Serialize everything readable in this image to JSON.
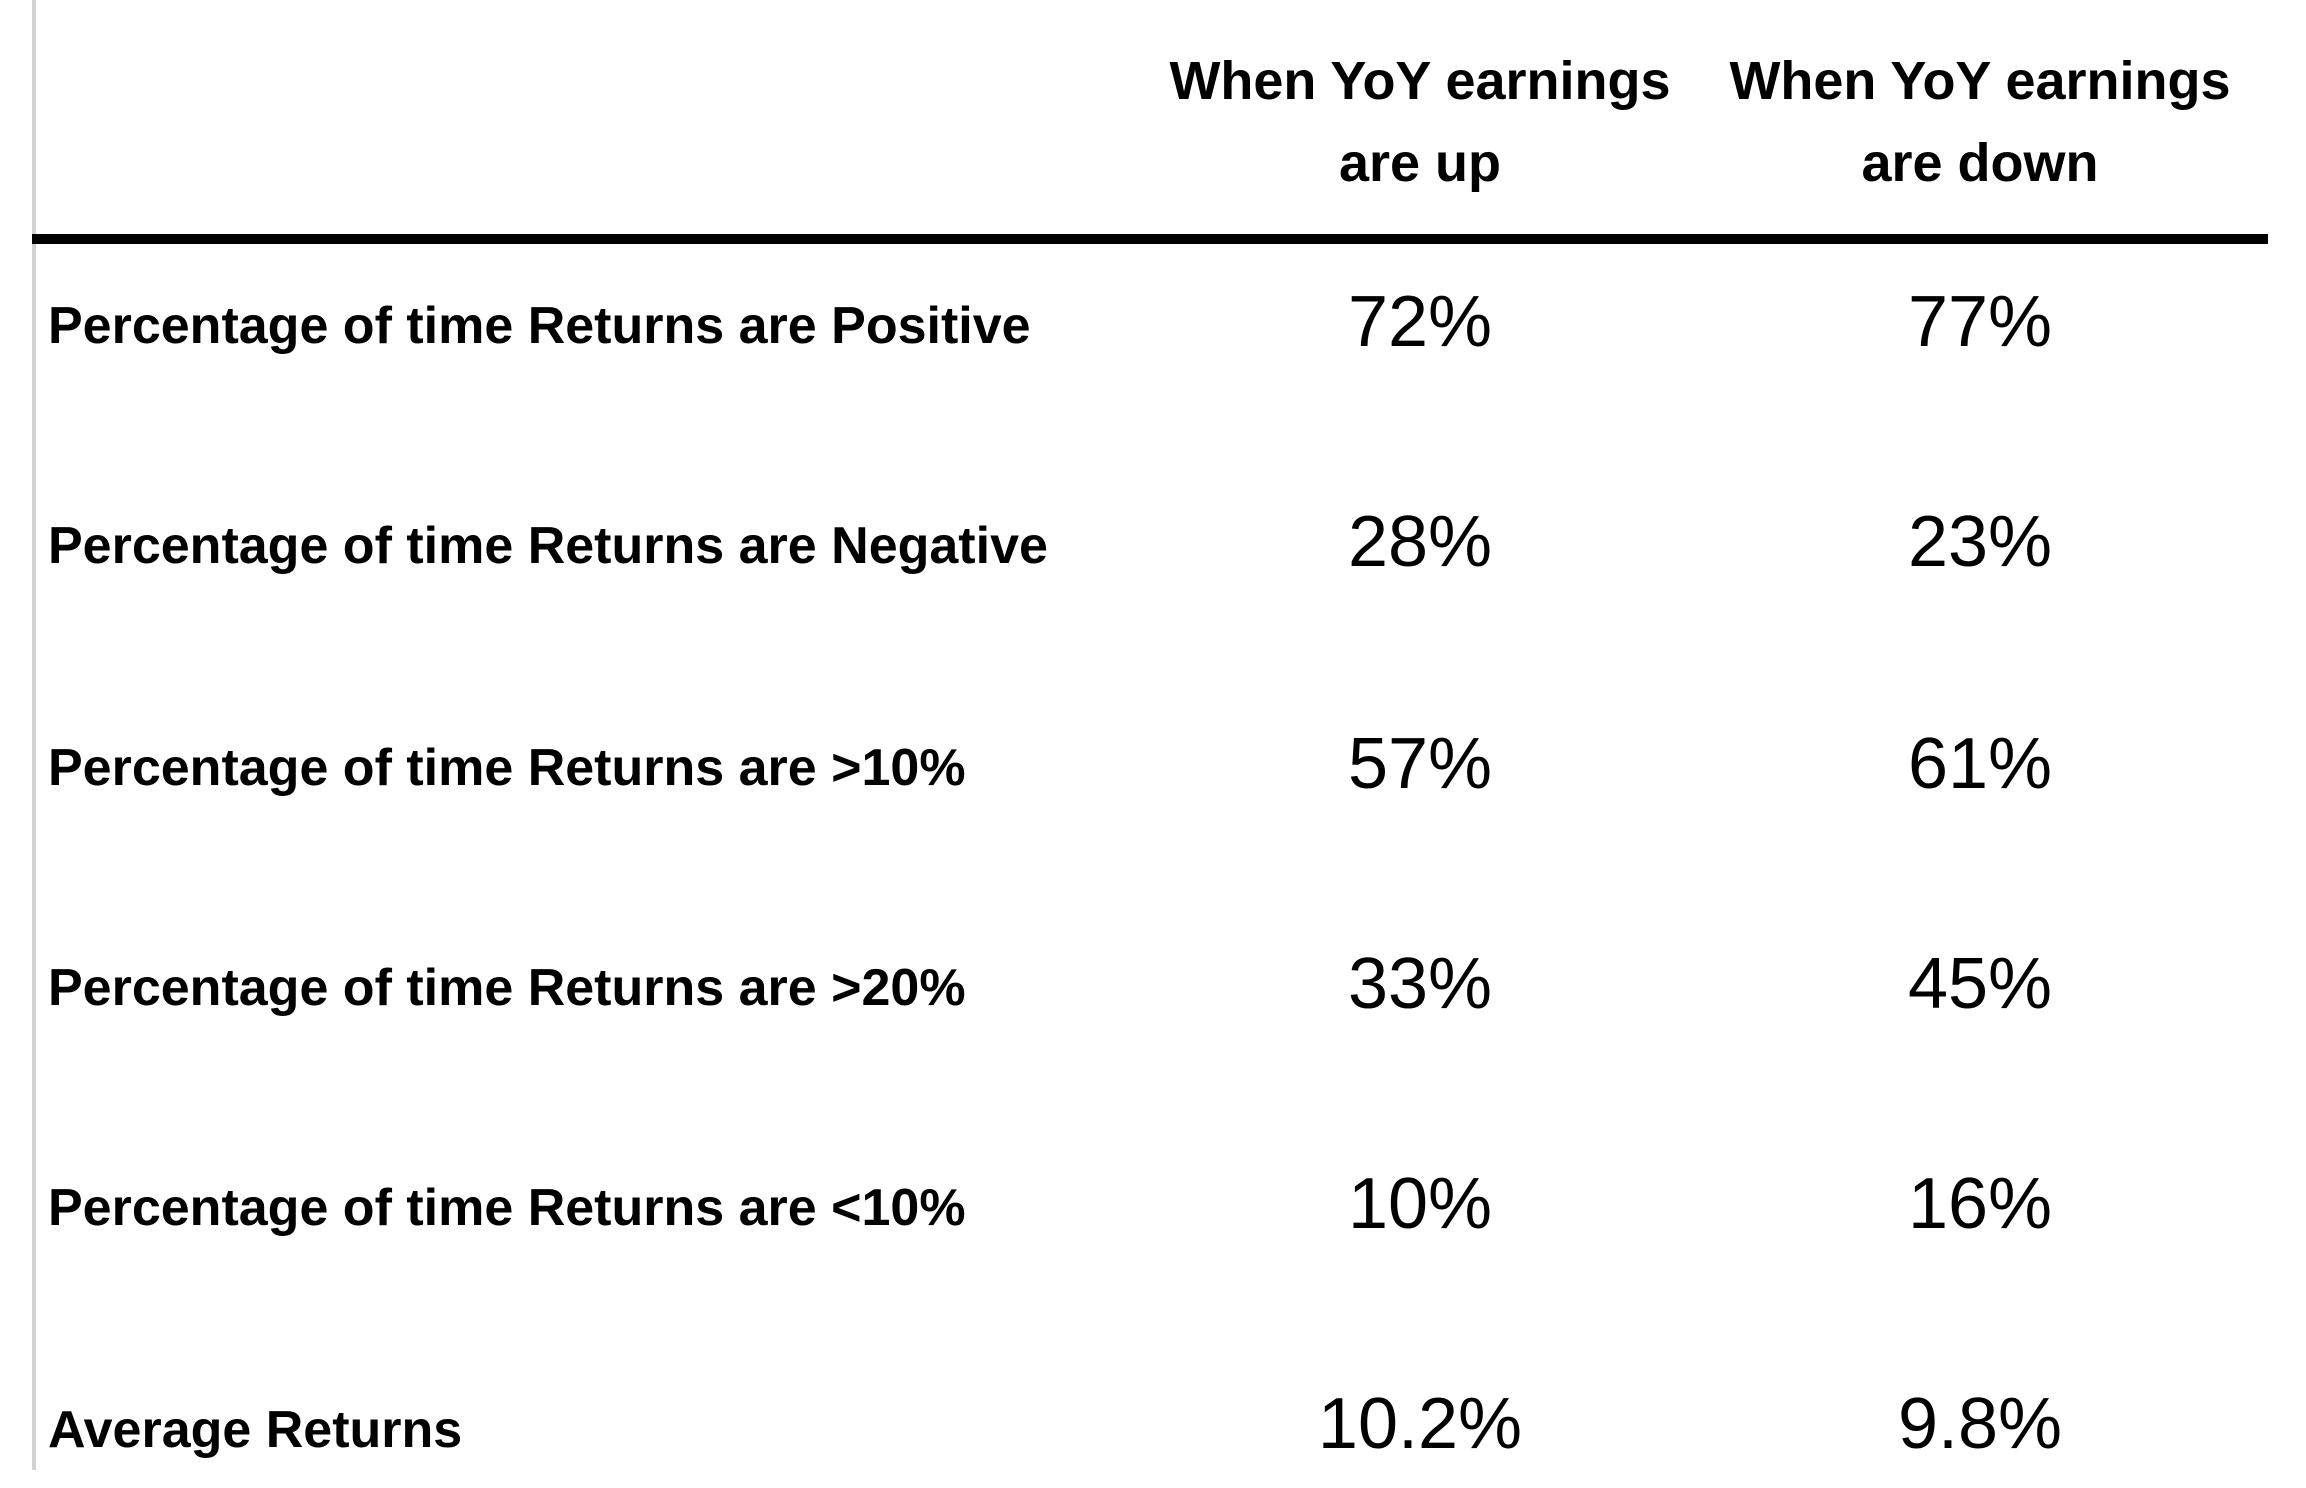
{
  "chart_data": {
    "type": "table",
    "columns": [
      {
        "line1": "When YoY earnings",
        "line2": "are up"
      },
      {
        "line1": "When YoY earnings",
        "line2": "are down"
      }
    ],
    "rows": [
      {
        "label": "Percentage of time Returns are Positive",
        "values": [
          "72%",
          "77%"
        ]
      },
      {
        "label": "Percentage of time Returns are Negative",
        "values": [
          "28%",
          "23%"
        ]
      },
      {
        "label": "Percentage of time Returns are >10%",
        "values": [
          "57%",
          "61%"
        ]
      },
      {
        "label": "Percentage of time Returns are >20%",
        "values": [
          "33%",
          "45%"
        ]
      },
      {
        "label": "Percentage of time Returns are <10%",
        "values": [
          "10%",
          "16%"
        ]
      },
      {
        "label": "Average Returns",
        "values": [
          "10.2%",
          "9.8%"
        ]
      }
    ]
  }
}
